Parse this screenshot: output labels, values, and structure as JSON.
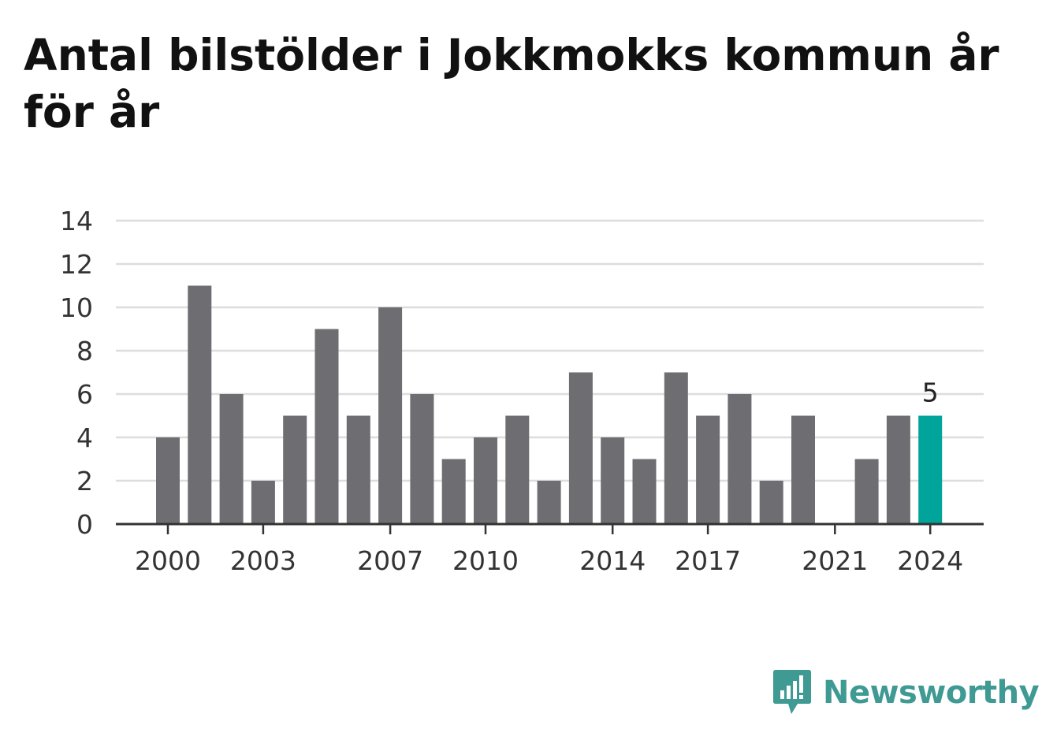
{
  "title": "Antal bilstölder i Jokkmokks kommun år för år",
  "brand": "Newsworthy",
  "colors": {
    "bar": "#6e6d72",
    "highlight": "#00a49a",
    "grid": "#dddddd",
    "axis": "#333333",
    "brand": "#3f9a94"
  },
  "chart_data": {
    "type": "bar",
    "title": "Antal bilstölder i Jokkmokks kommun år för år",
    "xlabel": "",
    "ylabel": "",
    "categories": [
      "2000",
      "2001",
      "2002",
      "2003",
      "2004",
      "2005",
      "2006",
      "2007",
      "2008",
      "2009",
      "2010",
      "2011",
      "2012",
      "2013",
      "2014",
      "2015",
      "2016",
      "2017",
      "2018",
      "2019",
      "2020",
      "2021",
      "2022",
      "2023",
      "2024"
    ],
    "values": [
      4,
      11,
      6,
      2,
      5,
      9,
      5,
      10,
      6,
      3,
      4,
      5,
      2,
      7,
      4,
      3,
      7,
      5,
      6,
      2,
      5,
      0,
      3,
      5,
      5
    ],
    "ylim": [
      0,
      14
    ],
    "yticks": [
      "0",
      "2",
      "4",
      "6",
      "8",
      "10",
      "12",
      "14"
    ],
    "xticks": [
      "2000",
      "2003",
      "2007",
      "2010",
      "2014",
      "2017",
      "2021",
      "2024"
    ],
    "highlight": "2024",
    "highlight_label": "5",
    "grid": true,
    "legend": "none"
  }
}
